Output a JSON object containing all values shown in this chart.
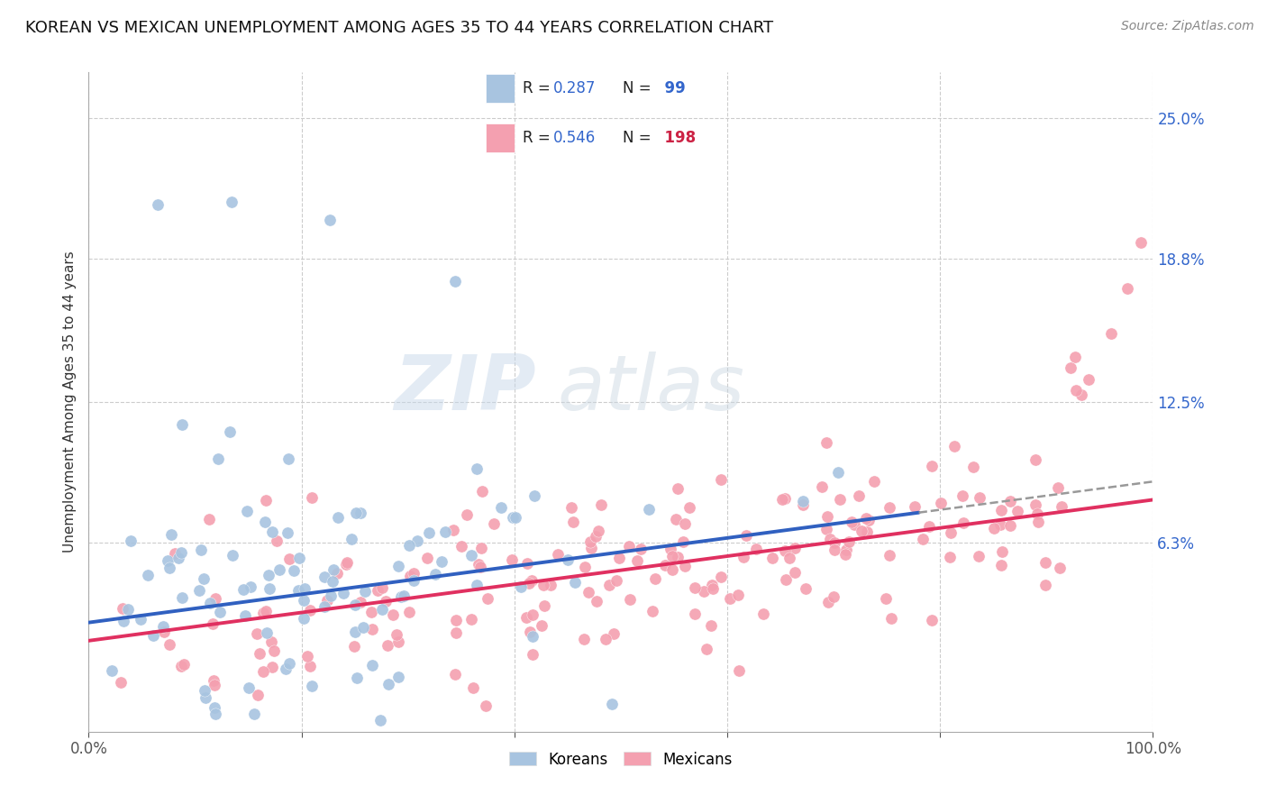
{
  "title": "KOREAN VS MEXICAN UNEMPLOYMENT AMONG AGES 35 TO 44 YEARS CORRELATION CHART",
  "source": "Source: ZipAtlas.com",
  "ylabel": "Unemployment Among Ages 35 to 44 years",
  "xlim": [
    0.0,
    1.0
  ],
  "ylim": [
    -0.02,
    0.27
  ],
  "ytick_vals": [
    0.063,
    0.125,
    0.188,
    0.25
  ],
  "ytick_labels": [
    "6.3%",
    "12.5%",
    "18.8%",
    "25.0%"
  ],
  "xtick_vals": [
    0.0,
    0.2,
    0.4,
    0.6,
    0.8,
    1.0
  ],
  "xtick_labels": [
    "0.0%",
    "",
    "",
    "",
    "",
    "100.0%"
  ],
  "korean_R": 0.287,
  "korean_N": 99,
  "mexican_R": 0.546,
  "mexican_N": 198,
  "korean_color": "#a8c4e0",
  "mexican_color": "#f4a0b0",
  "korean_line_color": "#3060c0",
  "mexican_line_color": "#e03060",
  "dashed_line_color": "#999999",
  "watermark_zip": "ZIP",
  "watermark_atlas": "atlas",
  "background_color": "#ffffff",
  "legend_korean_label": "Koreans",
  "legend_mexican_label": "Mexicans",
  "title_fontsize": 13,
  "axis_label_fontsize": 11,
  "tick_fontsize": 12,
  "source_fontsize": 10,
  "grid_color": "#cccccc",
  "grid_style": "--",
  "ytick_color": "#3366cc",
  "seed": 42,
  "korean_trend_start": 0.028,
  "korean_trend_end": 0.09,
  "mexican_trend_start": 0.02,
  "mexican_trend_end": 0.082
}
